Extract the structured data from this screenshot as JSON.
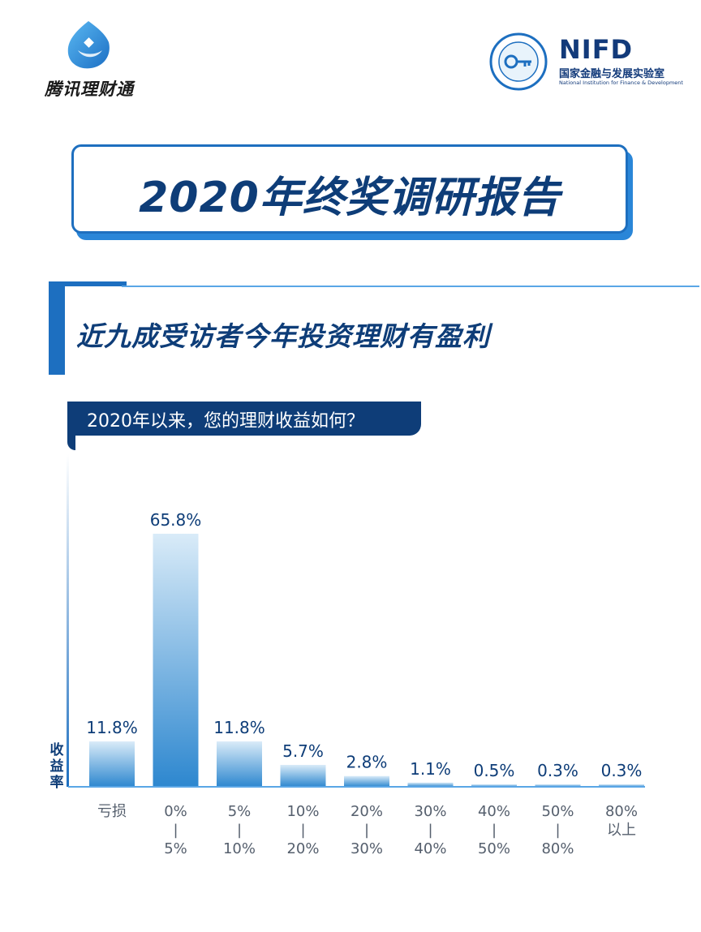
{
  "header": {
    "brand_left": "腾讯理财通",
    "brand_right_letters": "NIFD",
    "brand_right_cn": "国家金融与发展实验室",
    "brand_right_en": "National Institution for Finance & Development"
  },
  "report_title": "2020年终奖调研报告",
  "section_title": "近九成受访者今年投资理财有盈利",
  "question": "2020年以来，您的理财收益如何？",
  "colors": {
    "accent": "#1d6fc0",
    "dark_blue": "#0e3d78",
    "bar_top": "#d9ebf8",
    "bar_bottom": "#2d87cf"
  },
  "chart_data": {
    "type": "bar",
    "title": "",
    "ylabel": "收益率",
    "ylim": [
      0,
      70
    ],
    "grid": false,
    "categories": [
      [
        "亏损"
      ],
      [
        "0%",
        "|",
        "5%"
      ],
      [
        "5%",
        "|",
        "10%"
      ],
      [
        "10%",
        "|",
        "20%"
      ],
      [
        "20%",
        "|",
        "30%"
      ],
      [
        "30%",
        "|",
        "40%"
      ],
      [
        "40%",
        "|",
        "50%"
      ],
      [
        "50%",
        "|",
        "80%"
      ],
      [
        "80%",
        "以上"
      ]
    ],
    "values": [
      11.8,
      65.8,
      11.8,
      5.7,
      2.8,
      1.1,
      0.5,
      0.3,
      0.3
    ],
    "value_labels": [
      "11.8%",
      "65.8%",
      "11.8%",
      "5.7%",
      "2.8%",
      "1.1%",
      "0.5%",
      "0.3%",
      "0.3%"
    ]
  }
}
